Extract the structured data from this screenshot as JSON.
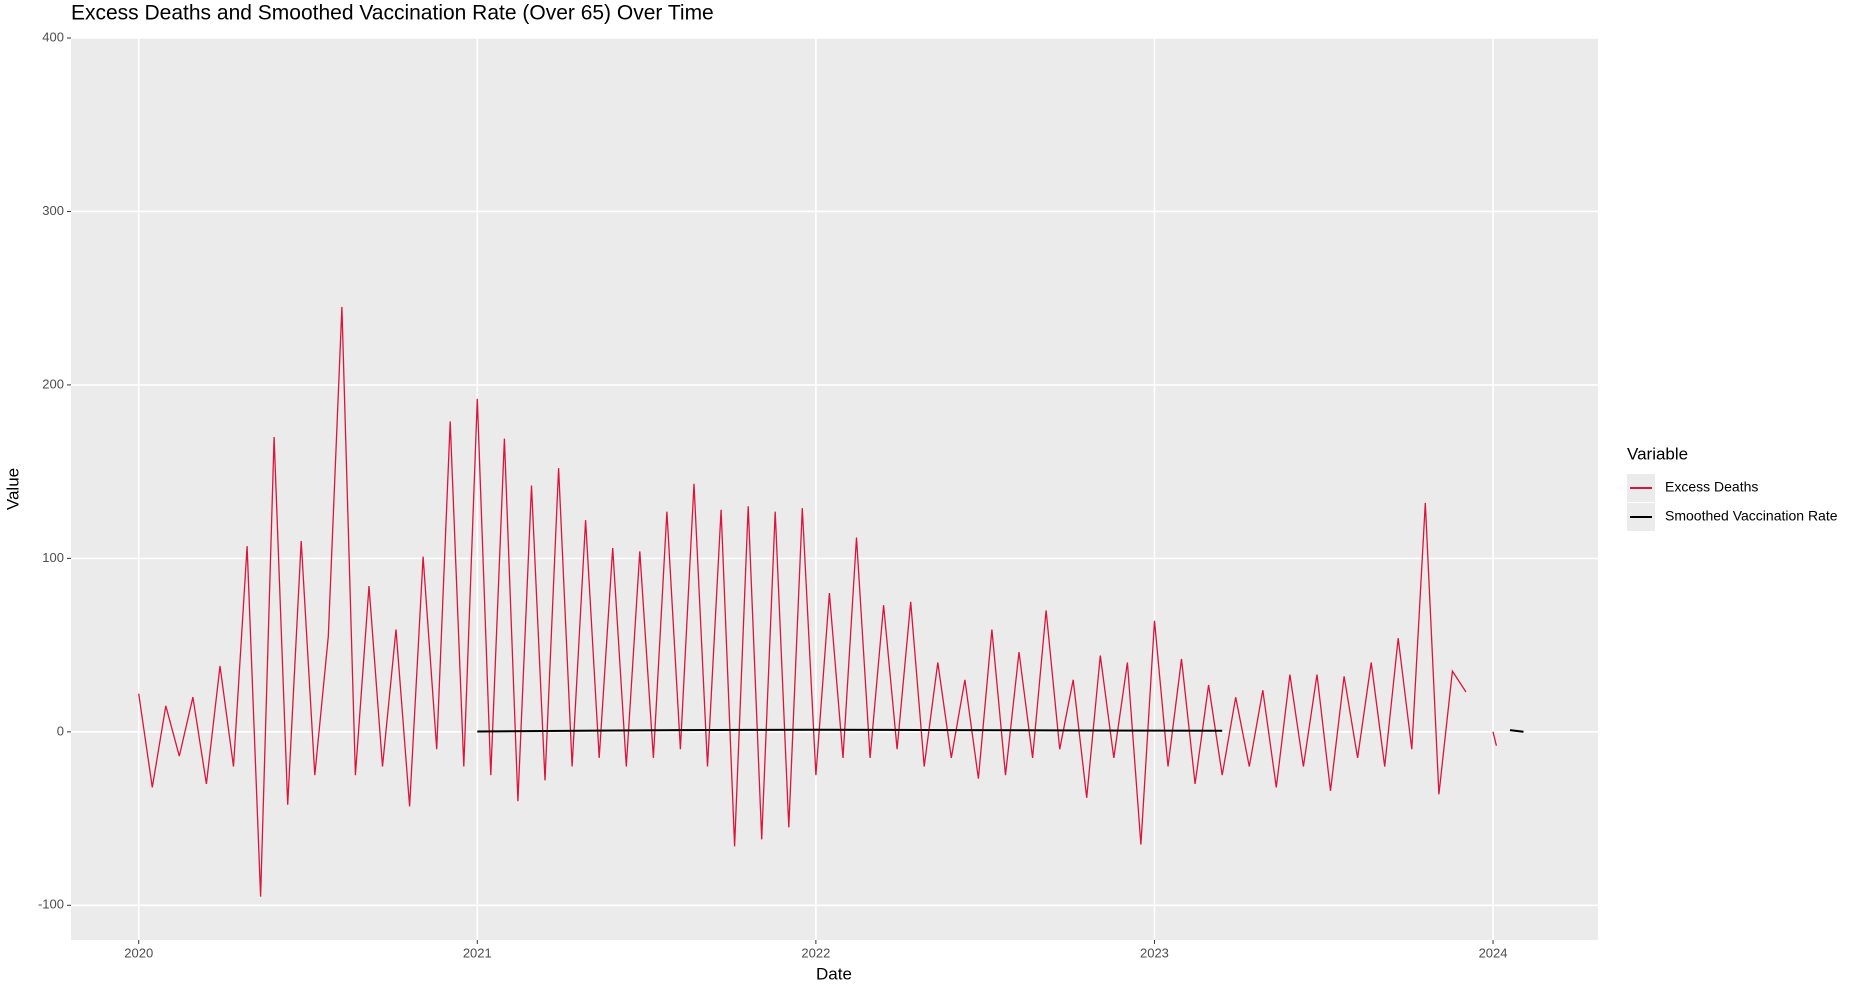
{
  "chart_data": {
    "type": "line",
    "title": "Excess Deaths and Smoothed Vaccination Rate (Over 65) Over Time",
    "x_label": "Date",
    "y_label": "Value",
    "legend_title": "Variable",
    "legend_position": "right",
    "grid": true,
    "xlim": [
      2019.8,
      2024.31
    ],
    "ylim": [
      -120,
      400
    ],
    "xticks": [
      2020,
      2021,
      2022,
      2023,
      2024
    ],
    "yticks": [
      -100,
      0,
      100,
      200,
      300,
      400
    ],
    "series": [
      {
        "name": "Excess Deaths",
        "color": "#dc143c",
        "x": [
          2020.0,
          2020.04,
          2020.08,
          2020.12,
          2020.16,
          2020.2,
          2020.24,
          2020.28,
          2020.32,
          2020.36,
          2020.4,
          2020.44,
          2020.48,
          2020.52,
          2020.56,
          2020.6,
          2020.64,
          2020.68,
          2020.72,
          2020.76,
          2020.8,
          2020.84,
          2020.88,
          2020.92,
          2020.96,
          2021.0,
          2021.04,
          2021.08,
          2021.12,
          2021.16,
          2021.2,
          2021.24,
          2021.28,
          2021.32,
          2021.36,
          2021.4,
          2021.44,
          2021.48,
          2021.52,
          2021.56,
          2021.6,
          2021.64,
          2021.68,
          2021.72,
          2021.76,
          2021.8,
          2021.84,
          2021.88,
          2021.92,
          2021.96,
          2022.0,
          2022.04,
          2022.08,
          2022.12,
          2022.16,
          2022.2,
          2022.24,
          2022.28,
          2022.32,
          2022.36,
          2022.4,
          2022.44,
          2022.48,
          2022.52,
          2022.56,
          2022.6,
          2022.64,
          2022.68,
          2022.72,
          2022.76,
          2022.8,
          2022.84,
          2022.88,
          2022.92,
          2022.96,
          2023.0,
          2023.04,
          2023.08,
          2023.12,
          2023.16,
          2023.2,
          2023.24,
          2023.28,
          2023.32,
          2023.36,
          2023.4,
          2023.44,
          2023.48,
          2023.52,
          2023.56,
          2023.6,
          2023.64,
          2023.68,
          2023.72,
          2023.76,
          2023.8,
          2023.84,
          2023.88,
          2023.92,
          2023.96,
          2024.0,
          2024.01
        ],
        "values": [
          22,
          -32,
          15,
          -14,
          20,
          -30,
          38,
          -20,
          107,
          -95,
          170,
          -42,
          110,
          -25,
          55,
          245,
          -25,
          84,
          -20,
          59,
          -43,
          101,
          -10,
          179,
          -20,
          192,
          -25,
          169,
          -40,
          142,
          -28,
          152,
          -20,
          122,
          -15,
          106,
          -20,
          104,
          -15,
          127,
          -10,
          143,
          -20,
          128,
          -66,
          130,
          -62,
          127,
          -55,
          129,
          -25,
          80,
          -15,
          112,
          -15,
          73,
          -10,
          75,
          -20,
          40,
          -15,
          30,
          -27,
          59,
          -25,
          46,
          -15,
          70,
          -10,
          30,
          -38,
          44,
          -15,
          40,
          -65,
          64,
          -20,
          42,
          -30,
          27,
          -25,
          20,
          -20,
          24,
          -32,
          33,
          -20,
          33,
          -34,
          32,
          -15,
          40,
          -20,
          54,
          -10,
          132,
          -36,
          35,
          23,
          null,
          0,
          -8
        ]
      },
      {
        "name": "Smoothed Vaccination Rate",
        "color": "#000000",
        "x": [
          2021.0,
          2021.2,
          2021.4,
          2021.6,
          2021.8,
          2022.0,
          2022.2,
          2022.4,
          2022.6,
          2022.8,
          2023.0,
          2023.2,
          2023.6,
          2024.05,
          2024.09
        ],
        "values": [
          0.2,
          0.5,
          0.8,
          1.0,
          1.1,
          1.2,
          1.1,
          1.0,
          0.9,
          0.8,
          0.7,
          0.6,
          null,
          1.0,
          0.0
        ]
      }
    ]
  }
}
